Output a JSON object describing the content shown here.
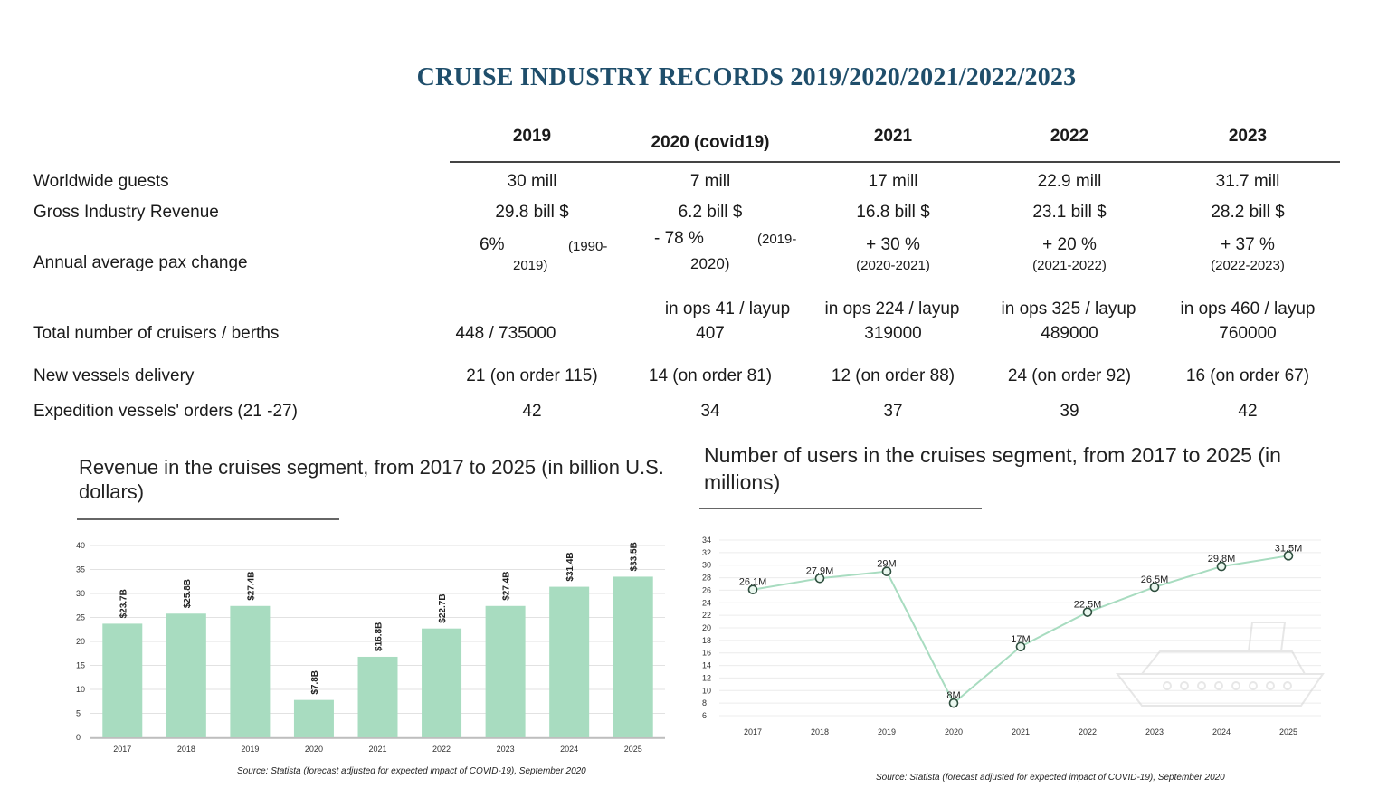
{
  "title": "CRUISE INDUSTRY RECORDS 2019/2020/2021/2022/2023",
  "table": {
    "years": [
      "2019",
      "2020 (covid19)",
      "2021",
      "2022",
      "2023"
    ],
    "rows": [
      {
        "label": "Worldwide guests",
        "values": [
          "30 mill",
          "7 mill",
          "17 mill",
          "22.9 mill",
          "31.7 mill"
        ]
      },
      {
        "label": "Gross Industry Revenue",
        "values": [
          "29.8 bill $",
          "6.2 bill $",
          "16.8 bill $",
          "23.1 bill $",
          "28.2 bill $"
        ]
      },
      {
        "label": "Annual average pax change",
        "values": [
          {
            "main": "6%",
            "extra": "(1990-",
            "sub": "2019)"
          },
          {
            "main": "- 78 %",
            "extra": "(2019-",
            "sub": "2020)"
          },
          {
            "main": "+ 30 %",
            "sub": "(2020-2021)"
          },
          {
            "main": "+ 20 %",
            "sub": "(2021-2022)"
          },
          {
            "main": "+ 37 %",
            "sub": "(2022-2023)"
          }
        ]
      },
      {
        "label": "Total number of cruisers / berths",
        "values": [
          {
            "line1": "",
            "line2": "448 / 735000"
          },
          {
            "line1": "in ops 41 / layup",
            "line2": "407"
          },
          {
            "line1": "in ops 224 / layup",
            "line2": "319000"
          },
          {
            "line1": "in ops 325 / layup",
            "line2": "489000"
          },
          {
            "line1": "in ops 460 / layup",
            "line2": "760000"
          }
        ]
      },
      {
        "label": "New vessels delivery",
        "values": [
          "21 (on order 115)",
          "14 (on order 81)",
          "12 (on order 88)",
          "24 (on order 92)",
          "16 (on order 67)"
        ]
      },
      {
        "label": "Expedition vessels' orders (21 -27)",
        "values": [
          "42",
          "34",
          "37",
          "39",
          "42"
        ]
      }
    ]
  },
  "chart_data": [
    {
      "type": "bar",
      "title": "Revenue in the cruises segment, from 2017 to 2025 (in billion U.S. dollars)",
      "categories": [
        "2017",
        "2018",
        "2019",
        "2020",
        "2021",
        "2022",
        "2023",
        "2024",
        "2025"
      ],
      "values": [
        23.7,
        25.8,
        27.4,
        7.8,
        16.8,
        22.7,
        27.4,
        31.4,
        33.5
      ],
      "data_labels": [
        "$23.7B",
        "$25.8B",
        "$27.4B",
        "$7.8B",
        "$16.8B",
        "$22.7B",
        "$27.4B",
        "$31.4B",
        "$33.5B"
      ],
      "yticks": [
        "0",
        "5",
        "10",
        "15",
        "20",
        "25",
        "30",
        "35",
        "40"
      ],
      "ylim": [
        0,
        40
      ],
      "grid": true,
      "color": "#a8dcc0",
      "source": "Source: Statista (forecast adjusted for expected impact of COVID-19), September 2020"
    },
    {
      "type": "line",
      "title": "Number of users in the cruises segment, from 2017 to 2025 (in millions)",
      "x": [
        "2017",
        "2018",
        "2019",
        "2020",
        "2021",
        "2022",
        "2023",
        "2024",
        "2025"
      ],
      "values": [
        26.1,
        27.9,
        29,
        8,
        17,
        22.5,
        26.5,
        29.8,
        31.5
      ],
      "data_labels": [
        "26.1M",
        "27.9M",
        "29M",
        "8M",
        "17M",
        "22.5M",
        "26.5M",
        "29.8M",
        "31.5M"
      ],
      "yticks": [
        "6",
        "8",
        "10",
        "12",
        "14",
        "16",
        "18",
        "20",
        "22",
        "24",
        "26",
        "28",
        "30",
        "32",
        "34"
      ],
      "ylim": [
        6,
        34
      ],
      "grid": true,
      "color": "#a8dcc0",
      "source": "Source: Statista (forecast adjusted for expected impact of COVID-19), September 2020"
    }
  ]
}
